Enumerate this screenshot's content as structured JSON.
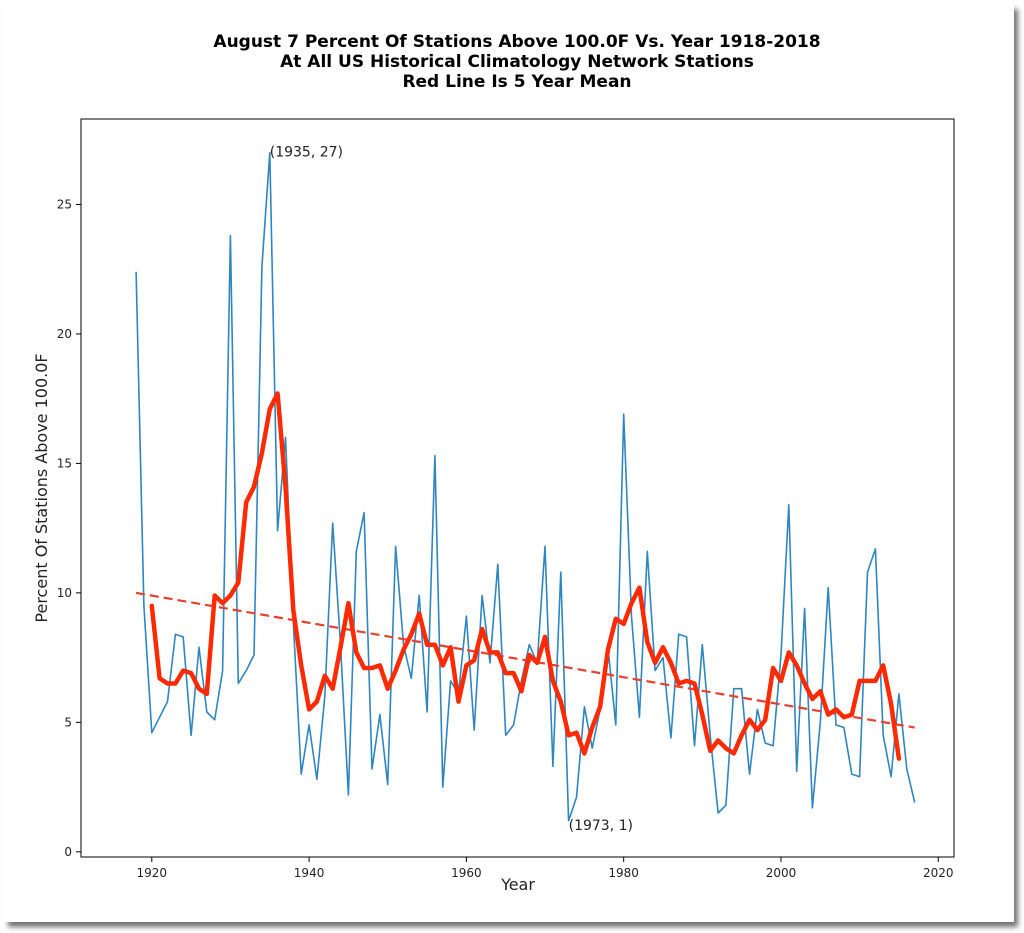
{
  "chart_data": {
    "type": "line",
    "title": [
      "August 7 Percent Of Stations Above 100.0F Vs. Year 1918-2018",
      "At All US Historical Climatology Network Stations",
      "Red Line Is 5 Year Mean"
    ],
    "xlabel": "Year",
    "ylabel": "Percent Of Stations Above 100.0F",
    "xlim": [
      1911,
      2022
    ],
    "ylim": [
      -0.2,
      28.3
    ],
    "xticks": [
      1920,
      1940,
      1960,
      1980,
      2000,
      2020
    ],
    "yticks": [
      0,
      5,
      10,
      15,
      20,
      25
    ],
    "grid": false,
    "colors": {
      "series": "#2e86c1",
      "mean": "#ff2a00",
      "trend": "#e8402e"
    },
    "series": [
      {
        "kind": "annual",
        "x": [
          1918,
          1919,
          1920,
          1921,
          1922,
          1923,
          1924,
          1925,
          1926,
          1927,
          1928,
          1929,
          1930,
          1931,
          1932,
          1933,
          1934,
          1935,
          1936,
          1937,
          1938,
          1939,
          1940,
          1941,
          1942,
          1943,
          1944,
          1945,
          1946,
          1947,
          1948,
          1949,
          1950,
          1951,
          1952,
          1953,
          1954,
          1955,
          1956,
          1957,
          1958,
          1959,
          1960,
          1961,
          1962,
          1963,
          1964,
          1965,
          1966,
          1967,
          1968,
          1969,
          1970,
          1971,
          1972,
          1973,
          1974,
          1975,
          1976,
          1977,
          1978,
          1979,
          1980,
          1981,
          1982,
          1983,
          1984,
          1985,
          1986,
          1987,
          1988,
          1989,
          1990,
          1991,
          1992,
          1993,
          1994,
          1995,
          1996,
          1997,
          1998,
          1999,
          2000,
          2001,
          2002,
          2003,
          2004,
          2005,
          2006,
          2007,
          2008,
          2009,
          2010,
          2011,
          2012,
          2013,
          2014,
          2015,
          2016,
          2017
        ],
        "values": [
          22.4,
          9.5,
          4.6,
          5.2,
          5.8,
          8.4,
          8.3,
          4.5,
          7.9,
          5.4,
          5.1,
          7.0,
          23.8,
          6.5,
          7.0,
          7.6,
          22.6,
          27.0,
          12.4,
          16.0,
          8.8,
          3.0,
          4.9,
          2.8,
          6.0,
          12.7,
          8.0,
          2.2,
          11.6,
          13.1,
          3.2,
          5.3,
          2.6,
          11.8,
          8.0,
          6.7,
          9.9,
          5.4,
          15.3,
          2.5,
          6.6,
          6.1,
          9.1,
          4.7,
          9.9,
          7.3,
          11.1,
          4.5,
          4.9,
          6.6,
          8.0,
          7.3,
          11.8,
          3.3,
          10.8,
          1.2,
          2.1,
          5.6,
          4.0,
          5.5,
          7.9,
          4.9,
          16.9,
          9.1,
          5.2,
          11.6,
          7.0,
          7.5,
          4.4,
          8.4,
          8.3,
          4.1,
          8.0,
          4.5,
          1.5,
          1.8,
          6.3,
          6.3,
          3.0,
          5.5,
          4.2,
          4.1,
          7.6,
          13.4,
          3.1,
          9.4,
          1.7,
          5.0,
          10.2,
          4.9,
          4.8,
          3.0,
          2.9,
          10.8,
          11.7,
          4.5,
          2.9,
          6.1,
          3.2,
          1.9
        ]
      },
      {
        "name": "5 Year Mean",
        "x": [
          1920,
          1921,
          1922,
          1923,
          1924,
          1925,
          1926,
          1927,
          1928,
          1929,
          1930,
          1931,
          1932,
          1933,
          1934,
          1935,
          1936,
          1937,
          1938,
          1939,
          1940,
          1941,
          1942,
          1943,
          1944,
          1945,
          1946,
          1947,
          1948,
          1949,
          1950,
          1951,
          1952,
          1953,
          1954,
          1955,
          1956,
          1957,
          1958,
          1959,
          1960,
          1961,
          1962,
          1963,
          1964,
          1965,
          1966,
          1967,
          1968,
          1969,
          1970,
          1971,
          1972,
          1973,
          1974,
          1975,
          1976,
          1977,
          1978,
          1979,
          1980,
          1981,
          1982,
          1983,
          1984,
          1985,
          1986,
          1987,
          1988,
          1989,
          1990,
          1991,
          1992,
          1993,
          1994,
          1995,
          1996,
          1997,
          1998,
          1999,
          2000,
          2001,
          2002,
          2003,
          2004,
          2005,
          2006,
          2007,
          2008,
          2009,
          2010,
          2011,
          2012,
          2013,
          2014,
          2015
        ],
        "values": [
          9.5,
          6.7,
          6.5,
          6.5,
          7.0,
          6.9,
          6.3,
          6.1,
          9.9,
          9.6,
          9.9,
          10.4,
          13.5,
          14.1,
          15.4,
          17.1,
          17.7,
          14.1,
          9.3,
          7.2,
          5.5,
          5.8,
          6.8,
          6.3,
          7.9,
          9.6,
          7.7,
          7.1,
          7.1,
          7.2,
          6.3,
          7.0,
          7.8,
          8.4,
          9.2,
          8.0,
          8.0,
          7.2,
          7.9,
          5.8,
          7.2,
          7.4,
          8.6,
          7.7,
          7.7,
          6.9,
          6.9,
          6.2,
          7.6,
          7.3,
          8.3,
          6.6,
          5.8,
          4.5,
          4.6,
          3.8,
          4.8,
          5.6,
          7.8,
          9.0,
          8.8,
          9.6,
          10.2,
          8.1,
          7.3,
          7.9,
          7.3,
          6.5,
          6.6,
          6.5,
          5.3,
          3.9,
          4.3,
          4.0,
          3.8,
          4.5,
          5.1,
          4.7,
          5.1,
          7.1,
          6.6,
          7.7,
          7.2,
          6.5,
          5.9,
          6.2,
          5.3,
          5.5,
          5.2,
          5.3,
          6.6,
          6.6,
          6.6,
          7.2,
          5.7,
          3.6
        ]
      }
    ],
    "trend": {
      "x": [
        1918,
        2017
      ],
      "values": [
        10.0,
        4.8
      ]
    },
    "annotations": [
      {
        "x": 1935,
        "y": 27,
        "text": "(1935, 27)"
      },
      {
        "x": 1973,
        "y": 1,
        "text": "(1973, 1)"
      }
    ]
  }
}
